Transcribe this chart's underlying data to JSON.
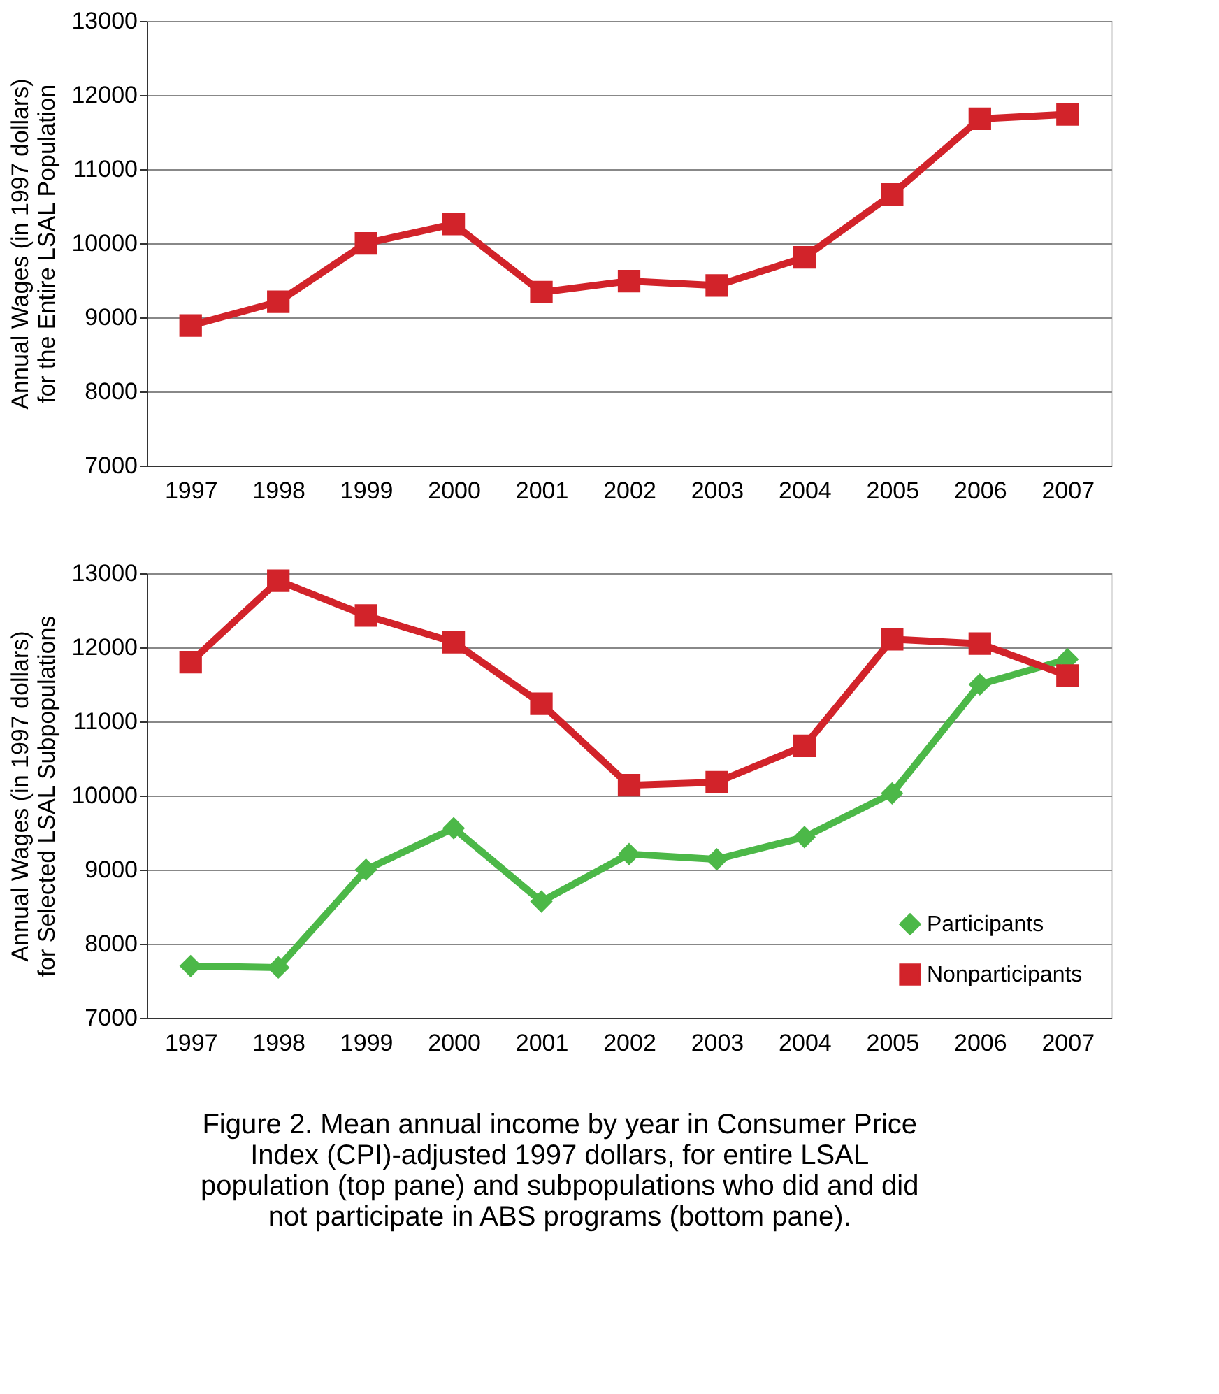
{
  "chart_data": [
    {
      "type": "line",
      "categories": [
        "1997",
        "1998",
        "1999",
        "2000",
        "2001",
        "2002",
        "2003",
        "2004",
        "2005",
        "2006",
        "2007"
      ],
      "ylabel": "Annual Wages (in 1997 dollars) for the Entire LSAL Population",
      "ylim": [
        7000,
        13000
      ],
      "yticks": [
        7000,
        8000,
        9000,
        10000,
        11000,
        12000,
        13000
      ],
      "grid": "y",
      "legend": false,
      "series": [
        {
          "color": "#d2232a",
          "marker": "square",
          "values": [
            8890,
            9210,
            10000,
            10260,
            9340,
            9490,
            9430,
            9810,
            10660,
            11680,
            11740
          ]
        }
      ]
    },
    {
      "type": "line",
      "categories": [
        "1997",
        "1998",
        "1999",
        "2000",
        "2001",
        "2002",
        "2003",
        "2004",
        "2005",
        "2006",
        "2007"
      ],
      "ylabel": "Annual Wages (in 1997 dollars) for Selected LSAL Subpopulations",
      "ylim": [
        7000,
        13000
      ],
      "yticks": [
        7000,
        8000,
        9000,
        10000,
        11000,
        12000,
        13000
      ],
      "grid": "y",
      "legend": "bottom right",
      "series": [
        {
          "name": "Participants",
          "color": "#4cb848",
          "marker": "diamond",
          "values": [
            7700,
            7680,
            9000,
            9560,
            8570,
            9210,
            9140,
            9440,
            10030,
            11500,
            11840
          ]
        },
        {
          "name": "Nonparticipants",
          "color": "#d2232a",
          "marker": "square",
          "values": [
            11800,
            12900,
            12430,
            12070,
            11240,
            10140,
            10180,
            10670,
            12110,
            12050,
            11620
          ]
        }
      ],
      "annotations": [
        "Figure 2. Mean annual income by year in Consumer Price Index (CPI)-adjusted 1997 dollars, for entire LSAL population (top pane) and subpopulations who did and did not participate in ABS programs (bottom pane)."
      ]
    }
  ]
}
